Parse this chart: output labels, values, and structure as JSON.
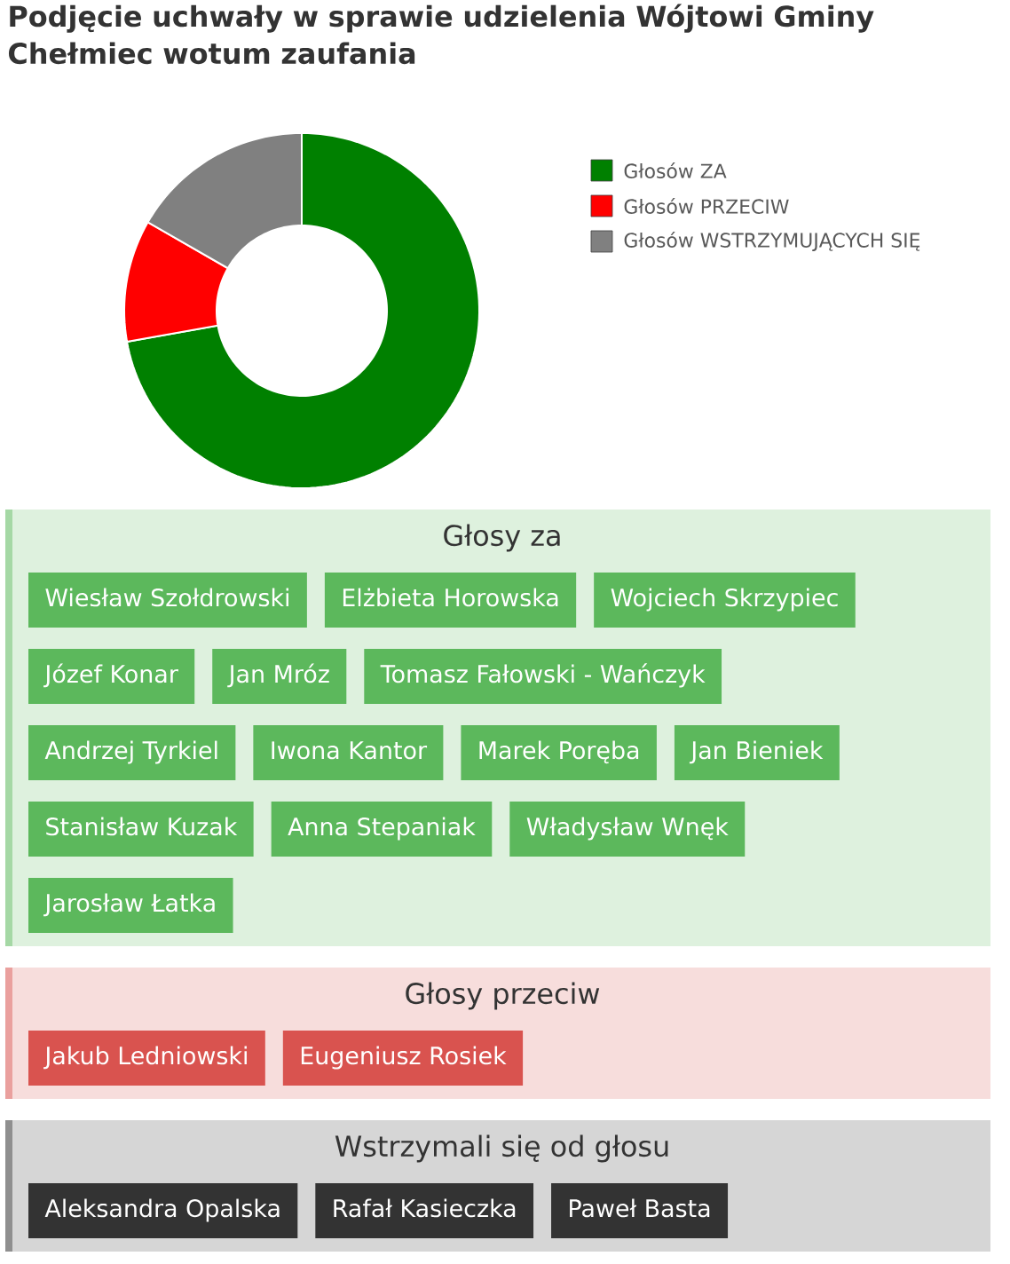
{
  "chart_data": [
    {
      "type": "donut",
      "title": "Podjęcie uchwały w sprawie udzielenia Wójtowi Gminy Chełmiec wotum zaufania",
      "categories": [
        "Głosów ZA",
        "Głosów PRZECIW",
        "Głosów WSTRZYMUJĄCYCH SIĘ"
      ],
      "values": [
        72.2,
        11.1,
        16.7
      ],
      "colors": [
        "#008000",
        "#ff0000",
        "#808080"
      ],
      "legend": "right"
    },
    {
      "type": "other",
      "title": "Głosy za",
      "color": "#5cb85c",
      "annotations": [
        "Wiesław Szołdrowski",
        "Elżbieta Horowska",
        "Wojciech Skrzypiec",
        "Józef Konar",
        "Jan Mróz",
        "Tomasz Fałowski - Wańczyk",
        "Andrzej Tyrkiel",
        "Iwona Kantor",
        "Marek Poręba",
        "Jan Bieniek",
        "Stanisław Kuzak",
        "Anna Stepaniak",
        "Władysław Wnęk",
        "Jarosław Łatka"
      ]
    },
    {
      "type": "other",
      "title": "Głosy przeciw",
      "color": "#d9534f",
      "annotations": [
        "Jakub Ledniowski",
        "Eugeniusz Rosiek"
      ]
    },
    {
      "type": "other",
      "title": "Wstrzymali się od głosu",
      "color": "#333333",
      "annotations": [
        "Aleksandra Opalska",
        "Rafał Kasieczka",
        "Paweł Basta"
      ]
    }
  ]
}
